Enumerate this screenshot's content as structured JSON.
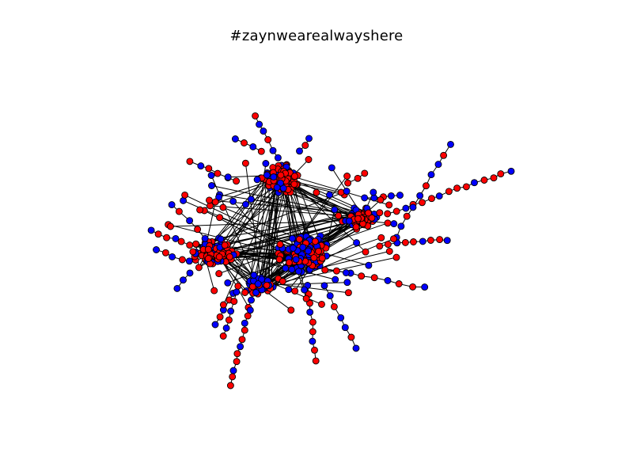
{
  "figure": {
    "title": "#zaynwearealwayshere"
  },
  "graph": {
    "type": "network",
    "layout": "force-directed",
    "node_colors": {
      "red": "#ff0000",
      "blue": "#0000ff",
      "outline": "#000000"
    },
    "edge_color": "#000000",
    "axes_visible": false
  }
}
